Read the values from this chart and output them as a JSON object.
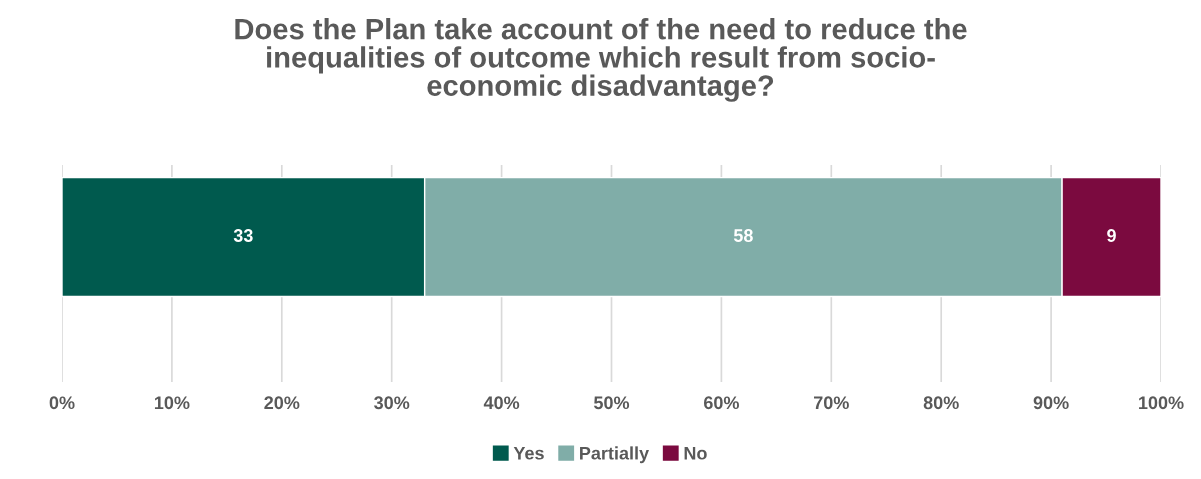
{
  "chart_data": {
    "type": "bar",
    "orientation": "horizontal",
    "stacked": true,
    "title": "Does the Plan take account of the need to reduce the\ninequalities of outcome which result from socio-\neconomic disadvantage?",
    "categories": [
      null
    ],
    "series": [
      {
        "name": "Yes",
        "color": "#005a4e",
        "values": [
          33
        ]
      },
      {
        "name": "Partially",
        "color": "#80ada8",
        "values": [
          58
        ]
      },
      {
        "name": "No",
        "color": "#7b0a3f",
        "values": [
          9
        ]
      }
    ],
    "xlim": [
      0,
      100
    ],
    "xticks": [
      {
        "value": 0,
        "label": "0%"
      },
      {
        "value": 10,
        "label": "10%"
      },
      {
        "value": 20,
        "label": "20%"
      },
      {
        "value": 30,
        "label": "30%"
      },
      {
        "value": 40,
        "label": "40%"
      },
      {
        "value": 50,
        "label": "50%"
      },
      {
        "value": 60,
        "label": "60%"
      },
      {
        "value": 70,
        "label": "70%"
      },
      {
        "value": 80,
        "label": "80%"
      },
      {
        "value": 90,
        "label": "90%"
      },
      {
        "value": 100,
        "label": "100%"
      }
    ],
    "grid": "x",
    "data_labels": true,
    "legend": "bottom",
    "tick_labels": "x"
  }
}
